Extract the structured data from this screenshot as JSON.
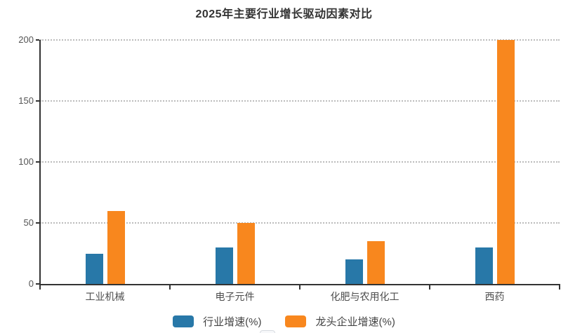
{
  "title": "2025年主要行业增长驱动因素对比",
  "chart_data": {
    "type": "bar",
    "title": "2025年主要行业增长驱动因素对比",
    "categories": [
      "工业机械",
      "电子元件",
      "化肥与农用化工",
      "西药"
    ],
    "series": [
      {
        "name": "行业增速(%)",
        "color": "#2878a8",
        "values": [
          25,
          30,
          20,
          30
        ]
      },
      {
        "name": "龙头企业增速(%)",
        "color": "#f8871e",
        "values": [
          60,
          50,
          35,
          200
        ]
      }
    ],
    "xlabel": "",
    "ylabel": "",
    "ylim": [
      0,
      200
    ],
    "yticks": [
      0,
      50,
      100,
      150,
      200
    ],
    "grid": "horizontal-dotted",
    "legend_position": "bottom-center"
  },
  "colors": {
    "axis": "#333333",
    "grid": "#bcbcbc",
    "tick_text": "#555555",
    "title_text": "#333333",
    "series_blue": "#2878a8",
    "series_orange": "#f8871e"
  }
}
